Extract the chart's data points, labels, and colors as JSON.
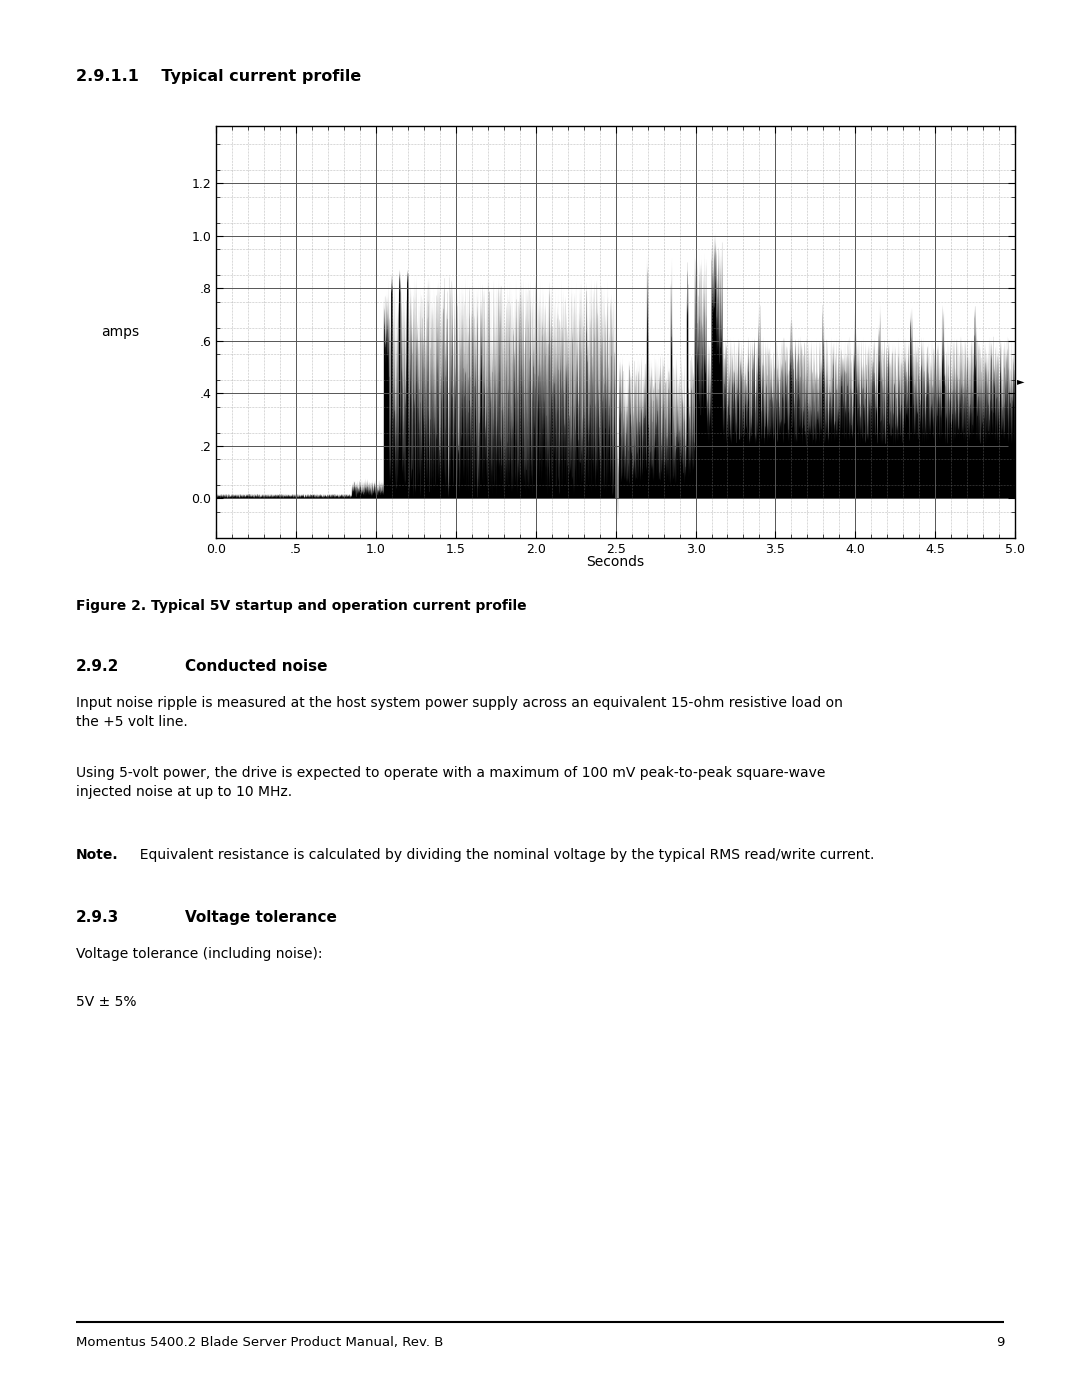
{
  "page_title": "2.9.1.1    Typical current profile",
  "section_heading_1": "2.9.2",
  "section_title_1": "Conducted noise",
  "section_text_1a": "Input noise ripple is measured at the host system power supply across an equivalent 15-ohm resistive load on\nthe +5 volt line.",
  "section_text_1b": "Using 5-volt power, the drive is expected to operate with a maximum of 100 mV peak-to-peak square-wave\ninjected noise at up to 10 MHz.",
  "section_note_bold": "Note.",
  "section_note_reg": "  Equivalent resistance is calculated by dividing the nominal voltage by the typical RMS read/write current.",
  "section_heading_2": "2.9.3",
  "section_title_2": "Voltage tolerance",
  "section_text_2a": "Voltage tolerance (including noise):",
  "section_text_2b": "5V ± 5%",
  "footer_text": "Momentus 5400.2 Blade Server Product Manual, Rev. B",
  "footer_page": "9",
  "figure_caption": "Figure 2. Typical 5V startup and operation current profile",
  "xlabel": "Seconds",
  "ylabel": "amps",
  "xmin": 0.0,
  "xmax": 5.0,
  "ymin": -0.15,
  "ymax": 1.42,
  "yticks": [
    0.0,
    0.2,
    0.4,
    0.6,
    0.8,
    1.0,
    1.2
  ],
  "ytick_labels": [
    "0.0",
    ".2",
    ".4",
    ".6",
    ".8",
    "1.0",
    "1.2"
  ],
  "xticks": [
    0.0,
    0.5,
    1.0,
    1.5,
    2.0,
    2.5,
    3.0,
    3.5,
    4.0,
    4.5,
    5.0
  ],
  "xtick_labels": [
    "0.0",
    ".5",
    "1.0",
    "1.5",
    "2.0",
    "2.5",
    "3.0",
    "3.5",
    "4.0",
    "4.5",
    "5.0"
  ],
  "background_color": "#ffffff",
  "plot_bg": "#ffffff",
  "line_color": "#000000"
}
